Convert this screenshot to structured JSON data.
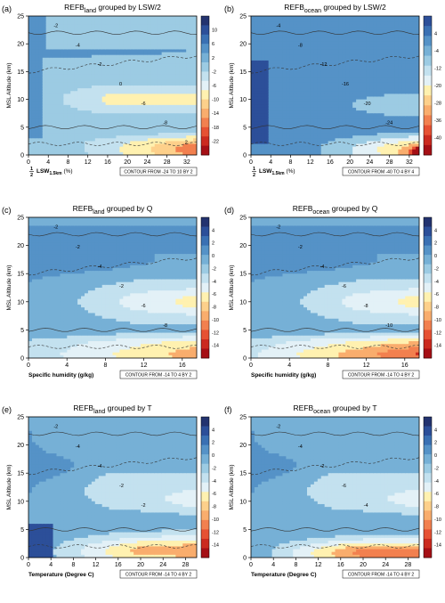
{
  "palette": {
    "land": [
      "#a50f15",
      "#cb2a1f",
      "#e65133",
      "#f2804f",
      "#f9ad6d",
      "#fdd08b",
      "#fff1b0",
      "#e3f1f7",
      "#c3e1ef",
      "#9ccbe3",
      "#76b0d6",
      "#5592c7",
      "#3a70b3",
      "#2c4f99",
      "#23336f"
    ],
    "ocean": [
      "#a50f15",
      "#cb2a1f",
      "#e65133",
      "#f2804f",
      "#f9ad6d",
      "#fdd08b",
      "#fff1b0",
      "#e3f1f7",
      "#c3e1ef",
      "#9ccbe3",
      "#76b0d6",
      "#5592c7",
      "#3a70b3",
      "#2c4f99"
    ]
  },
  "chart_data": [
    {
      "id": "a",
      "panel_label": "(a)",
      "type": "heatmap",
      "title_main": "REFB",
      "title_sub": "land",
      "title_rest": " grouped by LSW/2",
      "ylabel": "MSL Altitude (km)",
      "xlabel_html": "LSW",
      "xlabel_frac": "1",
      "xlabel_den": "2",
      "xlabel_sub": "1.5km",
      "xlabel_unit": " (%)",
      "xlim": [
        0,
        34
      ],
      "ylim": [
        0,
        25
      ],
      "xticks": [
        "0",
        "4",
        "8",
        "12",
        "16",
        "20",
        "24",
        "28",
        "32"
      ],
      "xtick_values": [
        0,
        4,
        8,
        12,
        16,
        20,
        24,
        28,
        32
      ],
      "yticks": [
        "0",
        "5",
        "10",
        "15",
        "20",
        "25"
      ],
      "contour_note": "CONTOUR FROM -24 TO 10 BY 2",
      "colorbar_labels": [
        "10",
        "6",
        "2",
        "-2",
        "-6",
        "-10",
        "-14",
        "-18",
        "-22"
      ],
      "colorbar_top": "10",
      "colorbar_levels": [
        10,
        6,
        2,
        -2,
        -6,
        -10,
        -14,
        -18,
        -22,
        -24
      ],
      "field": "land_lsw",
      "contour_labels": [
        "-2",
        "-4",
        "-2",
        "0",
        "-6",
        "-8",
        "2"
      ]
    },
    {
      "id": "b",
      "panel_label": "(b)",
      "type": "heatmap",
      "title_main": "REFB",
      "title_sub": "ocean",
      "title_rest": " grouped by LSW/2",
      "ylabel": "MSL Altitude (km)",
      "xlabel_html": "LSW",
      "xlabel_frac": "1",
      "xlabel_den": "2",
      "xlabel_sub": "1.5km",
      "xlabel_unit": " (%)",
      "xlim": [
        0,
        34
      ],
      "ylim": [
        0,
        25
      ],
      "xticks": [
        "0",
        "4",
        "8",
        "12",
        "16",
        "20",
        "24",
        "28",
        "32"
      ],
      "xtick_values": [
        0,
        4,
        8,
        12,
        16,
        20,
        24,
        28,
        32
      ],
      "yticks": [
        "0",
        "5",
        "10",
        "15",
        "20",
        "25"
      ],
      "contour_note": "CONTOUR FROM -40 TO 4 BY 4",
      "colorbar_labels": [
        "4",
        "-4",
        "-12",
        "-20",
        "-28",
        "-36",
        "-40"
      ],
      "field": "ocean_lsw",
      "contour_labels": [
        "-4",
        "-8",
        "-12",
        "-16",
        "-20",
        "-24"
      ]
    },
    {
      "id": "c",
      "panel_label": "(c)",
      "type": "heatmap",
      "title_main": "REFB",
      "title_sub": "land",
      "title_rest": " grouped by Q",
      "ylabel": "MSL Altitude (km)",
      "xlabel_plain": "Specific humidity (g/kg)",
      "xlim": [
        0,
        17.5
      ],
      "ylim": [
        0,
        25
      ],
      "xticks": [
        "0",
        "4",
        "8",
        "12",
        "16"
      ],
      "xtick_values": [
        0,
        4,
        8,
        12,
        16
      ],
      "yticks": [
        "0",
        "5",
        "10",
        "15",
        "20",
        "25"
      ],
      "contour_note": "CONTOUR FROM -14 TO 4 BY 2",
      "colorbar_labels": [
        "4",
        "2",
        "0",
        "-2",
        "-4",
        "-6",
        "-8",
        "-10",
        "-12",
        "-14"
      ],
      "field": "land_q",
      "contour_labels": [
        "-2",
        "-2",
        "-4",
        "-2",
        "-6",
        "-8"
      ]
    },
    {
      "id": "d",
      "panel_label": "(d)",
      "type": "heatmap",
      "title_main": "REFB",
      "title_sub": "ocean",
      "title_rest": " grouped by Q",
      "ylabel": "MSL Altitude (km)",
      "xlabel_plain": "Specific humidity (g/kg)",
      "xlim": [
        0,
        17.5
      ],
      "ylim": [
        0,
        25
      ],
      "xticks": [
        "0",
        "4",
        "8",
        "12",
        "16"
      ],
      "xtick_values": [
        0,
        4,
        8,
        12,
        16
      ],
      "yticks": [
        "0",
        "5",
        "10",
        "15",
        "20",
        "25"
      ],
      "contour_note": "CONTOUR FROM -14 TO 4 BY 2",
      "colorbar_labels": [
        "4",
        "2",
        "0",
        "-2",
        "-4",
        "-6",
        "-8",
        "-10",
        "-12",
        "-14"
      ],
      "field": "ocean_q",
      "contour_labels": [
        "-2",
        "-2",
        "-4",
        "-6",
        "-8",
        "-10"
      ]
    },
    {
      "id": "e",
      "panel_label": "(e)",
      "type": "heatmap",
      "title_main": "REFB",
      "title_sub": "land",
      "title_rest": " grouped by T",
      "ylabel": "MSL Altitude (km)",
      "xlabel_plain": "Temperature (Degree C)",
      "xlim": [
        0,
        30
      ],
      "ylim": [
        0,
        25
      ],
      "xticks": [
        "0",
        "4",
        "8",
        "12",
        "16",
        "20",
        "24",
        "28"
      ],
      "xtick_values": [
        0,
        4,
        8,
        12,
        16,
        20,
        24,
        28
      ],
      "yticks": [
        "0",
        "5",
        "10",
        "15",
        "20",
        "25"
      ],
      "contour_note": "CONTOUR FROM -14 TO 4 BY 2",
      "colorbar_labels": [
        "4",
        "2",
        "0",
        "-2",
        "-4",
        "-6",
        "-8",
        "-10",
        "-12",
        "-14"
      ],
      "field": "land_t",
      "contour_labels": [
        "-2",
        "-4",
        "-4",
        "-2",
        "-2"
      ]
    },
    {
      "id": "f",
      "panel_label": "(f)",
      "type": "heatmap",
      "title_main": "REFB",
      "title_sub": "ocean",
      "title_rest": " grouped by T",
      "ylabel": "MSL Altitude (km)",
      "xlabel_plain": "Temperature (Degree C)",
      "xlim": [
        0,
        30
      ],
      "ylim": [
        0,
        25
      ],
      "xticks": [
        "0",
        "4",
        "8",
        "12",
        "16",
        "20",
        "24",
        "28"
      ],
      "xtick_values": [
        0,
        4,
        8,
        12,
        16,
        20,
        24,
        28
      ],
      "yticks": [
        "0",
        "5",
        "10",
        "15",
        "20",
        "25"
      ],
      "contour_note": "CONTOUR FROM -14 TO 4 BY 2",
      "colorbar_labels": [
        "4",
        "2",
        "0",
        "-2",
        "-4",
        "-6",
        "-8",
        "-10",
        "-12",
        "-14"
      ],
      "field": "ocean_t",
      "contour_labels": [
        "-2",
        "-4",
        "-2",
        "-6",
        "-4"
      ]
    }
  ]
}
